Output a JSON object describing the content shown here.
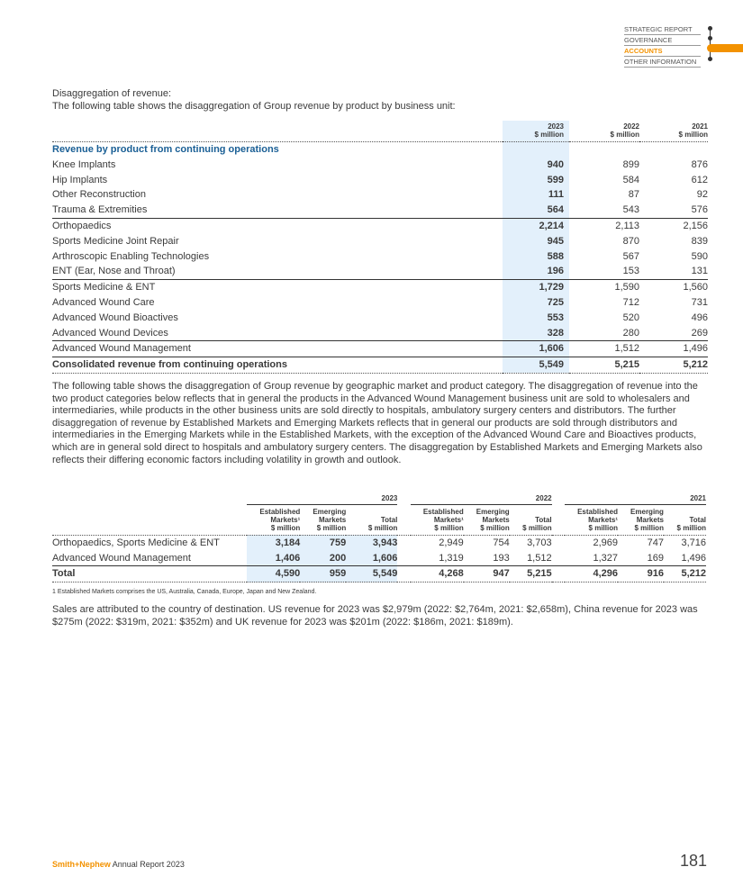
{
  "nav": {
    "items": [
      "STRATEGIC REPORT",
      "GOVERNANCE",
      "ACCOUNTS",
      "OTHER INFORMATION"
    ],
    "active": "ACCOUNTS",
    "accent": "#f39200"
  },
  "heading": {
    "title": "Disaggregation of revenue:",
    "intro": "The following table shows the disaggregation of Group revenue by product by business unit:"
  },
  "table1": {
    "columns": [
      {
        "year": "2023",
        "unit": "$ million"
      },
      {
        "year": "2022",
        "unit": "$ million"
      },
      {
        "year": "2021",
        "unit": "$ million"
      }
    ],
    "section": "Revenue by product from continuing operations",
    "rows": [
      {
        "label": "Knee Implants",
        "v": [
          "940",
          "899",
          "876"
        ]
      },
      {
        "label": "Hip Implants",
        "v": [
          "599",
          "584",
          "612"
        ]
      },
      {
        "label": "Other Reconstruction",
        "v": [
          "111",
          "87",
          "92"
        ]
      },
      {
        "label": "Trauma & Extremities",
        "v": [
          "564",
          "543",
          "576"
        ]
      },
      {
        "label": "Orthopaedics",
        "v": [
          "2,214",
          "2,113",
          "2,156"
        ],
        "total": true
      },
      {
        "label": "Sports Medicine Joint Repair",
        "v": [
          "945",
          "870",
          "839"
        ]
      },
      {
        "label": "Arthroscopic Enabling Technologies",
        "v": [
          "588",
          "567",
          "590"
        ]
      },
      {
        "label": "ENT (Ear, Nose and Throat)",
        "v": [
          "196",
          "153",
          "131"
        ]
      },
      {
        "label": "Sports Medicine & ENT",
        "v": [
          "1,729",
          "1,590",
          "1,560"
        ],
        "total": true
      },
      {
        "label": "Advanced Wound Care",
        "v": [
          "725",
          "712",
          "731"
        ]
      },
      {
        "label": "Advanced Wound Bioactives",
        "v": [
          "553",
          "520",
          "496"
        ]
      },
      {
        "label": "Advanced Wound Devices",
        "v": [
          "328",
          "280",
          "269"
        ]
      },
      {
        "label": "Advanced Wound Management",
        "v": [
          "1,606",
          "1,512",
          "1,496"
        ],
        "total": true
      },
      {
        "label": "Consolidated revenue from continuing operations",
        "v": [
          "5,549",
          "5,215",
          "5,212"
        ],
        "grand": true
      }
    ]
  },
  "paragraph1": "The following table shows the disaggregation of Group revenue by geographic market and product category. The disaggregation of revenue into the two product categories below reflects that in general the products in the Advanced Wound Management business unit are sold to wholesalers and intermediaries, while products in the other business units are sold directly to hospitals, ambulatory surgery centers and distributors. The further disaggregation of revenue by Established Markets and Emerging Markets reflects that in general our products are sold through distributors and intermediaries in the Emerging Markets while in the Established Markets, with the exception of the Advanced Wound Care and Bioactives products, which are in general sold direct to hospitals and ambulatory surgery centers. The disaggregation by Established Markets and Emerging Markets also reflects their differing economic factors including volatility in growth and outlook.",
  "table2": {
    "years": [
      "2023",
      "2022",
      "2021"
    ],
    "subheaders": [
      {
        "l1": "Established",
        "l2": "Markets¹",
        "l3": "$ million"
      },
      {
        "l1": "Emerging",
        "l2": "Markets",
        "l3": "$ million"
      },
      {
        "l1": "",
        "l2": "Total",
        "l3": "$ million"
      }
    ],
    "rows": [
      {
        "label": "Orthopaedics, Sports Medicine & ENT",
        "v": [
          "3,184",
          "759",
          "3,943",
          "2,949",
          "754",
          "3,703",
          "2,969",
          "747",
          "3,716"
        ]
      },
      {
        "label": "Advanced Wound Management",
        "v": [
          "1,406",
          "200",
          "1,606",
          "1,319",
          "193",
          "1,512",
          "1,327",
          "169",
          "1,496"
        ]
      },
      {
        "label": "Total",
        "v": [
          "4,590",
          "959",
          "5,549",
          "4,268",
          "947",
          "5,215",
          "4,296",
          "916",
          "5,212"
        ],
        "grand": true
      }
    ]
  },
  "footnote": "1   Established Markets comprises the US, Australia, Canada, Europe, Japan and New Zealand.",
  "paragraph2": "Sales are attributed to the country of destination. US revenue for 2023 was $2,979m (2022: $2,764m, 2021: $2,658m), China revenue for 2023 was $275m (2022: $319m, 2021: $352m) and UK revenue for 2023 was $201m (2022: $186m, 2021: $189m).",
  "footer": {
    "brand": "Smith+Nephew",
    "title": " Annual Report 2023",
    "page": "181"
  }
}
